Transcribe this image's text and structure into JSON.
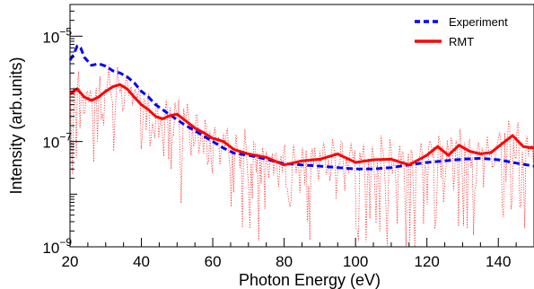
{
  "chart_data": {
    "type": "line",
    "xlabel": "Photon Energy (eV)",
    "ylabel": "Intensity (arb.units)",
    "xlim": [
      20,
      150
    ],
    "ylim": [
      1e-09,
      4e-05
    ],
    "yscale": "log",
    "x_ticks": [
      20,
      40,
      60,
      80,
      100,
      120,
      140
    ],
    "y_ticks": [
      {
        "base": "10",
        "exp": "−9",
        "value": 1e-09
      },
      {
        "base": "10",
        "exp": "−7",
        "value": 1e-07
      },
      {
        "base": "10",
        "exp": "−5",
        "value": 1e-05
      }
    ],
    "legend_position": "top-right",
    "series": [
      {
        "name": "Experiment",
        "color": "#0000ff",
        "style": "dashed",
        "x": [
          20,
          21,
          22,
          23,
          24,
          26,
          28,
          30,
          32,
          34,
          36,
          38,
          40,
          42,
          44,
          46,
          48,
          50,
          52,
          55,
          58,
          60,
          63,
          66,
          70,
          75,
          80,
          85,
          90,
          95,
          100,
          105,
          110,
          115,
          120,
          125,
          130,
          135,
          140,
          145,
          150
        ],
        "y": [
          3.5e-06,
          4.5e-06,
          6.5e-06,
          6e-06,
          4e-06,
          2.8e-06,
          3e-06,
          2.7e-06,
          2.2e-06,
          2e-06,
          1.7e-06,
          1.3e-06,
          9e-07,
          7e-07,
          5e-07,
          4e-07,
          3.2e-07,
          2.6e-07,
          2.1e-07,
          1.6e-07,
          1.2e-07,
          1e-07,
          7.5e-08,
          6e-08,
          5.5e-08,
          4.6e-08,
          3.8e-08,
          3.6e-08,
          3.4e-08,
          3.2e-08,
          3e-08,
          3e-08,
          3.2e-08,
          3.6e-08,
          4e-08,
          4.3e-08,
          4.6e-08,
          4.8e-08,
          4.5e-08,
          3.9e-08,
          3.4e-08
        ]
      },
      {
        "name": "RMT",
        "color": "#ff0000",
        "style": "solid",
        "x": [
          20,
          22,
          24,
          26,
          28,
          30,
          32,
          34,
          36,
          38,
          40,
          42,
          44,
          46,
          48,
          50,
          52,
          55,
          58,
          60,
          63,
          66,
          70,
          75,
          80,
          85,
          90,
          95,
          100,
          105,
          110,
          115,
          120,
          123,
          126,
          129,
          132,
          135,
          138,
          141,
          144,
          147,
          150
        ],
        "y": [
          8e-07,
          1e-06,
          7e-07,
          6e-07,
          7e-07,
          9e-07,
          1.1e-06,
          1.2e-06,
          1e-06,
          7e-07,
          5e-07,
          4e-07,
          3e-07,
          2.7e-07,
          3.1e-07,
          3.3e-07,
          2.6e-07,
          1.8e-07,
          1.4e-07,
          1.15e-07,
          1e-07,
          7e-08,
          5.8e-08,
          5e-08,
          3.6e-08,
          4.3e-08,
          4.6e-08,
          5.8e-08,
          4e-08,
          4.5e-08,
          4.6e-08,
          3.6e-08,
          5.5e-08,
          8e-08,
          5.5e-08,
          8.5e-08,
          6.5e-08,
          5.8e-08,
          6.2e-08,
          9e-08,
          1.3e-07,
          8e-08,
          7.5e-08
        ]
      }
    ]
  }
}
